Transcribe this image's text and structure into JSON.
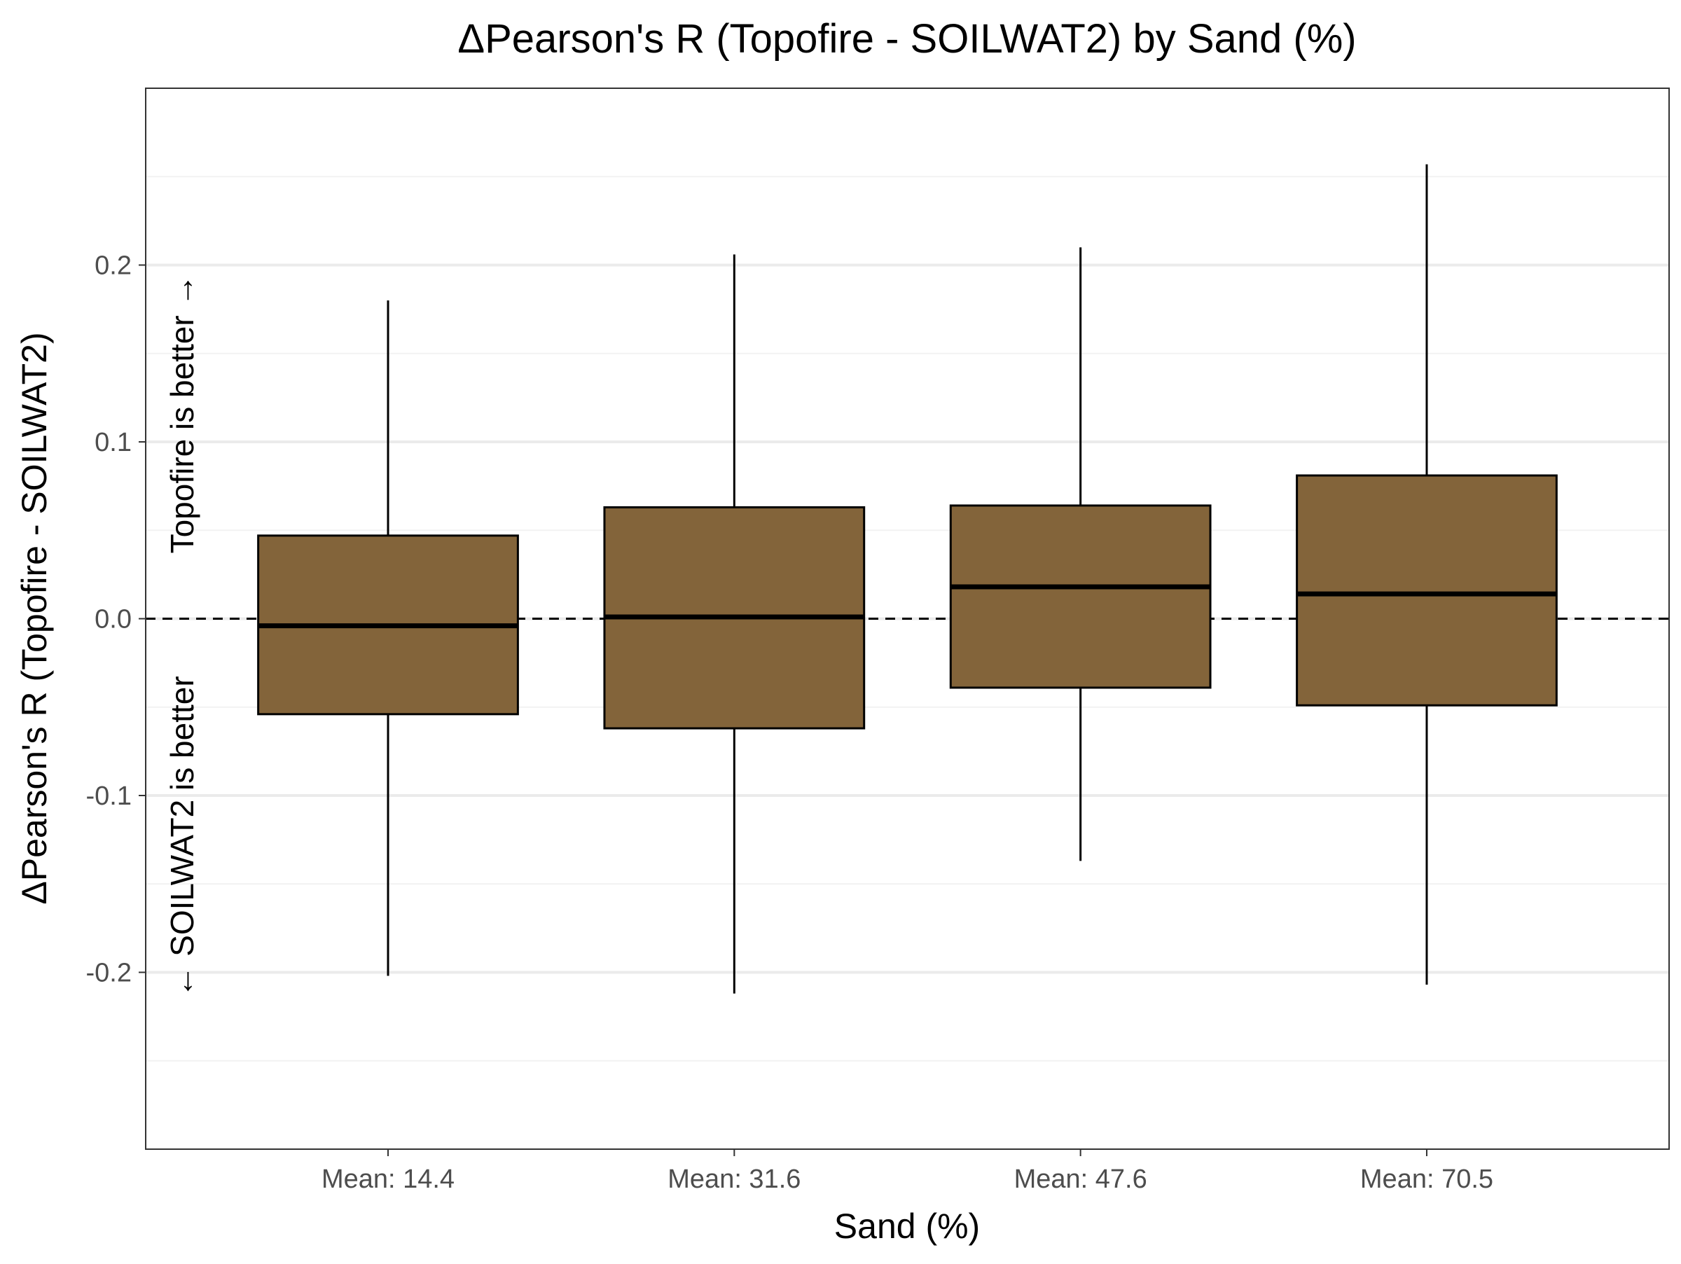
{
  "chart_data": {
    "type": "boxplot",
    "title": "ΔPearson's R (Topofire - SOILWAT2) by Sand (%)",
    "xlabel": "Sand (%)",
    "ylabel": "ΔPearson's R (Topofire - SOILWAT2)",
    "ylim": [
      -0.3,
      0.3
    ],
    "yticks": [
      -0.2,
      -0.1,
      0.0,
      0.1,
      0.2
    ],
    "ytick_labels": [
      "-0.2",
      "-0.1",
      "0.0",
      "0.1",
      "0.2"
    ],
    "categories": [
      "Mean: 14.4",
      "Mean: 31.6",
      "Mean: 47.6",
      "Mean: 70.5"
    ],
    "boxes": [
      {
        "whisker_low": -0.202,
        "q1": -0.054,
        "median": -0.004,
        "q3": 0.047,
        "whisker_high": 0.18
      },
      {
        "whisker_low": -0.212,
        "q1": -0.062,
        "median": 0.001,
        "q3": 0.063,
        "whisker_high": 0.206
      },
      {
        "whisker_low": -0.137,
        "q1": -0.039,
        "median": 0.018,
        "q3": 0.064,
        "whisker_high": 0.21
      },
      {
        "whisker_low": -0.207,
        "q1": -0.049,
        "median": 0.014,
        "q3": 0.081,
        "whisker_high": 0.257
      }
    ],
    "reference_line": 0.0,
    "annotations": {
      "upper": "Topofire is better →",
      "lower": "← SOILWAT2 is better"
    },
    "grid": true,
    "colors": {
      "box_fill": "#83643a",
      "box_stroke": "#000000",
      "grid_major": "#ebebeb",
      "grid_minor": "#f2f2f2",
      "tick_label": "#4d4d4d",
      "panel_border": "#333333"
    }
  }
}
